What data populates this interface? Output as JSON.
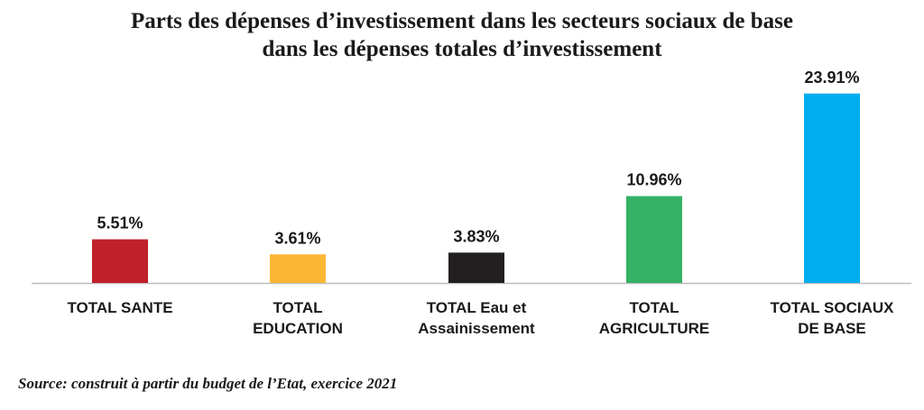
{
  "title_lines": [
    "Parts des dépenses d’investissement dans les secteurs sociaux de base",
    "dans les dépenses totales d’investissement"
  ],
  "source": "Source: construit à partir du budget de l’Etat, exercice 2021",
  "chart_data": {
    "type": "bar",
    "title": "Parts des dépenses d’investissement dans les secteurs sociaux de base dans les dépenses totales d’investissement",
    "categories": [
      [
        "TOTAL SANTE"
      ],
      [
        "TOTAL",
        "EDUCATION"
      ],
      [
        "TOTAL Eau et",
        "Assainissement"
      ],
      [
        "TOTAL",
        "AGRICULTURE"
      ],
      [
        "TOTAL SOCIAUX",
        "DE BASE"
      ]
    ],
    "values": [
      5.51,
      3.61,
      3.83,
      10.96,
      23.91
    ],
    "value_labels": [
      "5.51%",
      "3.61%",
      "3.83%",
      "10.96%",
      "23.91%"
    ],
    "colors": [
      "#c0202a",
      "#fbb734",
      "#231f20",
      "#35b265",
      "#00adee"
    ],
    "ylim": [
      0,
      24
    ],
    "grid": false,
    "legend": "none",
    "xlabel": "",
    "ylabel": ""
  }
}
